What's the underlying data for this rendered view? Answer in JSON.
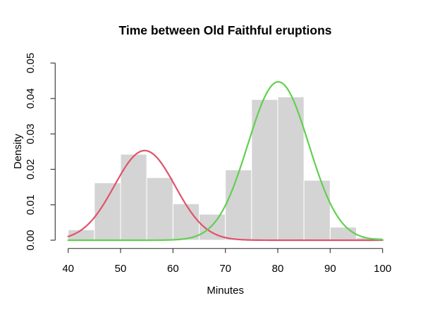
{
  "chart_data": {
    "type": "bar",
    "subtype": "histogram-with-density-curves",
    "title": "Time between Old Faithful eruptions",
    "xlabel": "Minutes",
    "ylabel": "Density",
    "xlim": [
      40,
      100
    ],
    "ylim": [
      0,
      0.05
    ],
    "x_ticks": [
      "40",
      "50",
      "60",
      "70",
      "80",
      "90",
      "100"
    ],
    "y_ticks": [
      "0.00",
      "0.01",
      "0.02",
      "0.03",
      "0.04",
      "0.05"
    ],
    "grid": false,
    "legend": false,
    "histogram": {
      "bin_edges": [
        40,
        45,
        50,
        55,
        60,
        65,
        70,
        75,
        80,
        85,
        90,
        95,
        100
      ],
      "densities": [
        0.00294,
        0.01618,
        0.02426,
        0.01765,
        0.01029,
        0.00735,
        0.01985,
        0.03971,
        0.04044,
        0.01691,
        0.00368,
        0.00074
      ],
      "bar_fill": "#d4d4d4",
      "bar_border": "#ffffff"
    },
    "curves": [
      {
        "name": "mixture-component-1",
        "color": "#df536b",
        "mean": 54.6,
        "sd": 5.8,
        "peak_density": 0.0253
      },
      {
        "name": "mixture-component-2",
        "color": "#61d04f",
        "mean": 80.1,
        "sd": 5.8,
        "peak_density": 0.0447
      }
    ],
    "axis_color": "#404040",
    "text_color": "#000000"
  }
}
